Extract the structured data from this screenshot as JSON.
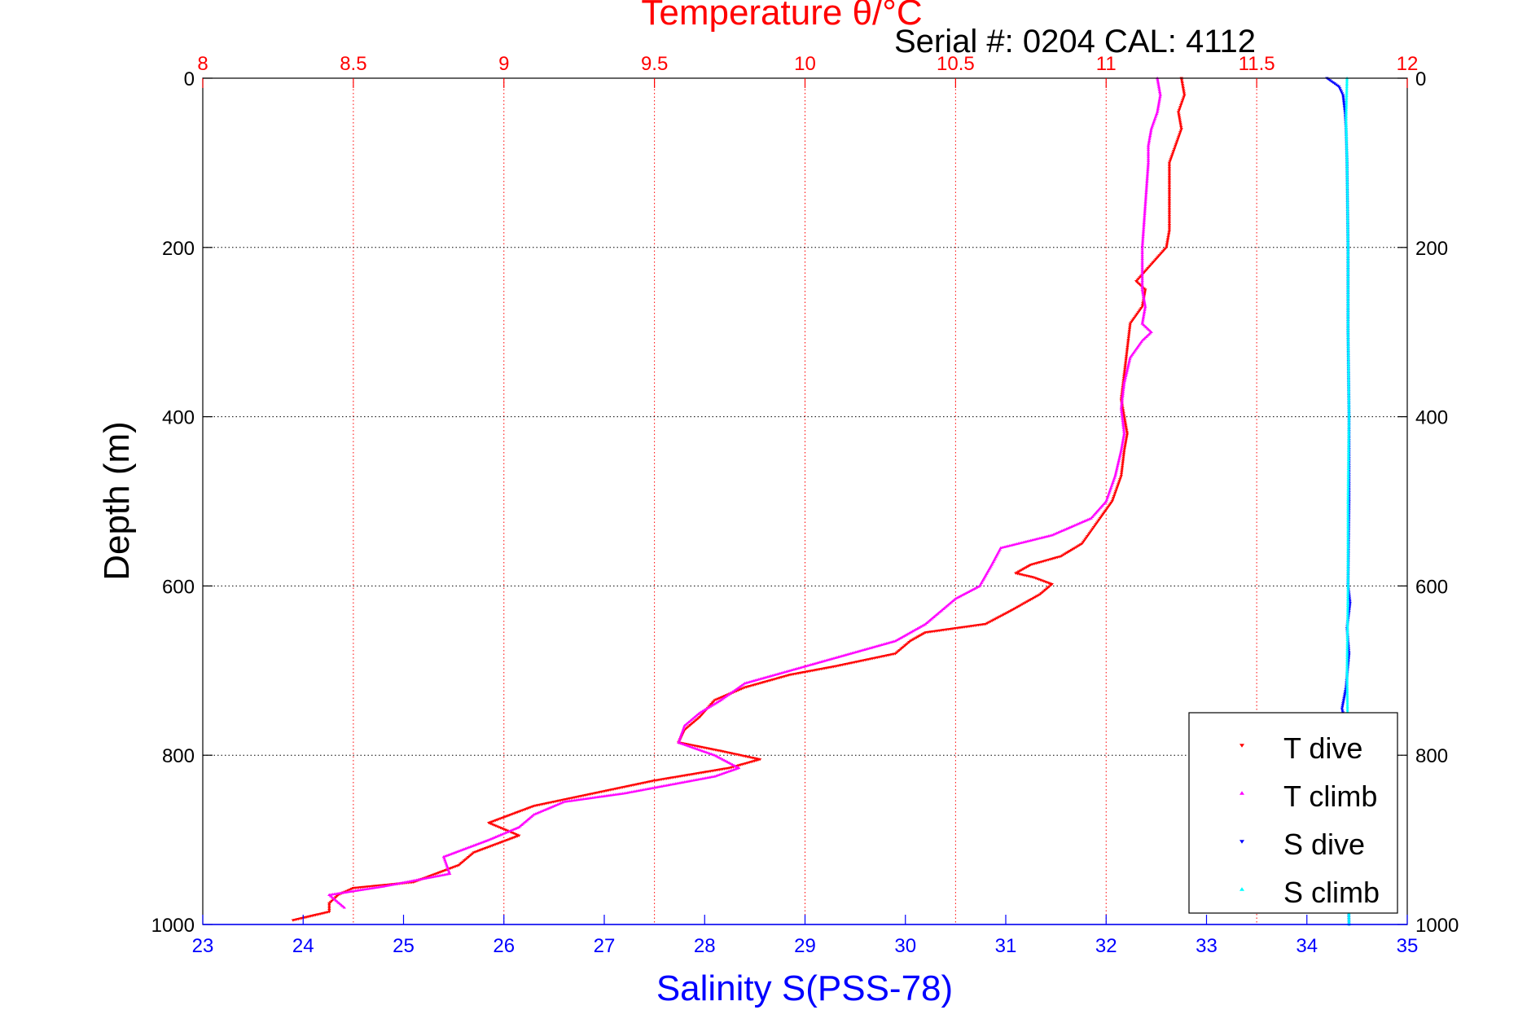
{
  "chart_data": {
    "type": "scatter",
    "title": "Temperature θ/°C",
    "subtitle": "Serial #: 0204  CAL: 4112",
    "ylabel": "Depth (m)",
    "xlabel": "Salinity S(PSS-78)",
    "y_reversed": true,
    "ylim": [
      0,
      1000
    ],
    "y_ticks": [
      "0",
      "200",
      "400",
      "600",
      "800",
      "1000"
    ],
    "temperature_axis": {
      "position": "top",
      "lim": [
        8,
        12
      ],
      "ticks": [
        "8",
        "8.5",
        "9",
        "9.5",
        "10",
        "10.5",
        "11",
        "11.5",
        "12"
      ],
      "grid": true,
      "color": "#ff0000"
    },
    "salinity_axis": {
      "position": "bottom",
      "lim": [
        23,
        35
      ],
      "ticks": [
        "23",
        "24",
        "25",
        "26",
        "27",
        "28",
        "29",
        "30",
        "31",
        "32",
        "33",
        "34",
        "35"
      ],
      "color": "#0000ff"
    },
    "grid": true,
    "legend_position": "bottom-right",
    "series": [
      {
        "name": "T dive",
        "axis": "temperature",
        "color": "#ff0000",
        "marker": "triangle-down",
        "points": [
          [
            11.25,
            0
          ],
          [
            11.26,
            20
          ],
          [
            11.24,
            40
          ],
          [
            11.25,
            60
          ],
          [
            11.23,
            80
          ],
          [
            11.21,
            100
          ],
          [
            11.21,
            150
          ],
          [
            11.21,
            180
          ],
          [
            11.2,
            200
          ],
          [
            11.15,
            220
          ],
          [
            11.1,
            240
          ],
          [
            11.13,
            250
          ],
          [
            11.12,
            270
          ],
          [
            11.08,
            290
          ],
          [
            11.07,
            320
          ],
          [
            11.06,
            350
          ],
          [
            11.05,
            380
          ],
          [
            11.06,
            400
          ],
          [
            11.07,
            420
          ],
          [
            11.06,
            440
          ],
          [
            11.05,
            470
          ],
          [
            11.02,
            500
          ],
          [
            10.98,
            520
          ],
          [
            10.92,
            550
          ],
          [
            10.85,
            565
          ],
          [
            10.75,
            575
          ],
          [
            10.7,
            585
          ],
          [
            10.76,
            590
          ],
          [
            10.82,
            598
          ],
          [
            10.78,
            610
          ],
          [
            10.68,
            630
          ],
          [
            10.6,
            645
          ],
          [
            10.4,
            655
          ],
          [
            10.35,
            665
          ],
          [
            10.3,
            680
          ],
          [
            10.1,
            695
          ],
          [
            9.95,
            705
          ],
          [
            9.8,
            720
          ],
          [
            9.7,
            735
          ],
          [
            9.65,
            755
          ],
          [
            9.6,
            770
          ],
          [
            9.58,
            785
          ],
          [
            9.72,
            795
          ],
          [
            9.85,
            805
          ],
          [
            9.75,
            815
          ],
          [
            9.5,
            830
          ],
          [
            9.3,
            845
          ],
          [
            9.1,
            860
          ],
          [
            8.95,
            880
          ],
          [
            9.05,
            895
          ],
          [
            8.9,
            915
          ],
          [
            8.85,
            930
          ],
          [
            8.7,
            950
          ],
          [
            8.5,
            957
          ],
          [
            8.45,
            965
          ],
          [
            8.42,
            975
          ],
          [
            8.42,
            985
          ],
          [
            8.3,
            995
          ]
        ]
      },
      {
        "name": "T climb",
        "axis": "temperature",
        "color": "#ff00ff",
        "marker": "triangle-up",
        "points": [
          [
            11.17,
            0
          ],
          [
            11.18,
            20
          ],
          [
            11.17,
            40
          ],
          [
            11.15,
            60
          ],
          [
            11.14,
            80
          ],
          [
            11.14,
            100
          ],
          [
            11.13,
            150
          ],
          [
            11.12,
            200
          ],
          [
            11.12,
            220
          ],
          [
            11.12,
            250
          ],
          [
            11.13,
            270
          ],
          [
            11.12,
            290
          ],
          [
            11.15,
            300
          ],
          [
            11.12,
            310
          ],
          [
            11.08,
            330
          ],
          [
            11.06,
            360
          ],
          [
            11.05,
            390
          ],
          [
            11.06,
            420
          ],
          [
            11.05,
            440
          ],
          [
            11.03,
            470
          ],
          [
            11.0,
            500
          ],
          [
            10.95,
            520
          ],
          [
            10.82,
            540
          ],
          [
            10.65,
            555
          ],
          [
            10.62,
            575
          ],
          [
            10.58,
            600
          ],
          [
            10.5,
            615
          ],
          [
            10.45,
            630
          ],
          [
            10.4,
            645
          ],
          [
            10.3,
            665
          ],
          [
            10.1,
            685
          ],
          [
            9.95,
            700
          ],
          [
            9.8,
            715
          ],
          [
            9.72,
            735
          ],
          [
            9.65,
            750
          ],
          [
            9.6,
            765
          ],
          [
            9.58,
            785
          ],
          [
            9.7,
            800
          ],
          [
            9.78,
            815
          ],
          [
            9.7,
            825
          ],
          [
            9.4,
            845
          ],
          [
            9.2,
            855
          ],
          [
            9.1,
            870
          ],
          [
            9.05,
            885
          ],
          [
            8.95,
            900
          ],
          [
            8.8,
            920
          ],
          [
            8.82,
            940
          ],
          [
            8.6,
            955
          ],
          [
            8.42,
            965
          ],
          [
            8.47,
            980
          ]
        ]
      },
      {
        "name": "S dive",
        "axis": "salinity",
        "color": "#0000ff",
        "marker": "triangle-down",
        "points": [
          [
            34.2,
            0
          ],
          [
            34.32,
            10
          ],
          [
            34.36,
            20
          ],
          [
            34.38,
            40
          ],
          [
            34.39,
            60
          ],
          [
            34.4,
            100
          ],
          [
            34.41,
            200
          ],
          [
            34.41,
            300
          ],
          [
            34.42,
            400
          ],
          [
            34.42,
            500
          ],
          [
            34.41,
            600
          ],
          [
            34.43,
            620
          ],
          [
            34.4,
            650
          ],
          [
            34.42,
            680
          ],
          [
            34.39,
            720
          ],
          [
            34.35,
            745
          ],
          [
            34.38,
            760
          ],
          [
            34.4,
            800
          ],
          [
            34.4,
            900
          ],
          [
            34.42,
            1000
          ]
        ]
      },
      {
        "name": "S climb",
        "axis": "salinity",
        "color": "#00ffff",
        "marker": "triangle-up",
        "points": [
          [
            34.4,
            0
          ],
          [
            34.39,
            50
          ],
          [
            34.4,
            100
          ],
          [
            34.41,
            200
          ],
          [
            34.41,
            300
          ],
          [
            34.42,
            400
          ],
          [
            34.41,
            500
          ],
          [
            34.41,
            600
          ],
          [
            34.4,
            700
          ],
          [
            34.41,
            800
          ],
          [
            34.41,
            900
          ],
          [
            34.42,
            1000
          ]
        ]
      }
    ]
  }
}
